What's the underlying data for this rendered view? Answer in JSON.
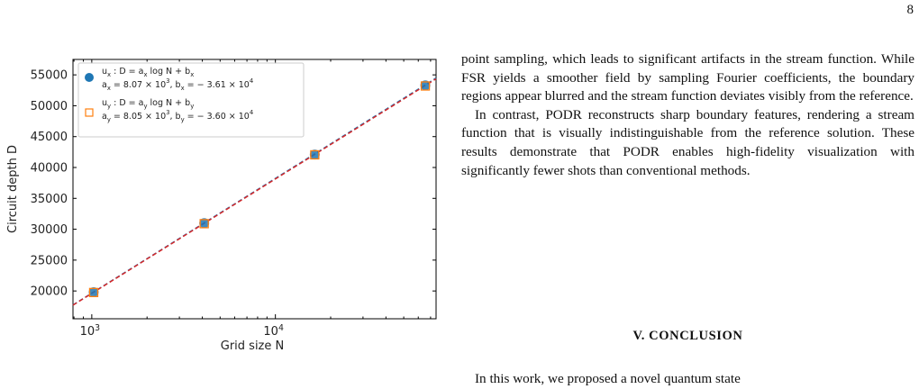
{
  "page": {
    "number": "8"
  },
  "figure": {
    "ylabel": "Circuit depth D",
    "xlabel": "Grid size N",
    "legend": [
      {
        "line1": "u_x : D = a_x log N + b_x",
        "line2": "a_x = 8.07 × 10^3,  b_x = − 3.61 × 10^4",
        "marker": "filled-circle",
        "color": "#1f77b4"
      },
      {
        "line1": "u_y : D = a_y log N + b_y",
        "line2": "a_y = 8.05 × 10^3,  b_y = − 3.60 × 10^4",
        "marker": "open-square",
        "color": "#ff7f0e"
      }
    ],
    "yticks": [
      "20000",
      "25000",
      "30000",
      "35000",
      "40000",
      "45000",
      "50000",
      "55000"
    ],
    "xticks": [
      "10^3",
      "10^4"
    ]
  },
  "chart_data": {
    "type": "scatter",
    "xscale": "log",
    "xlabel": "Grid size N",
    "ylabel": "Circuit depth D",
    "xlim": [
      790,
      75000
    ],
    "ylim": [
      15500,
      57500
    ],
    "series": [
      {
        "name": "u_x",
        "marker": "circle",
        "color": "#1f77b4",
        "x": [
          1024,
          4096,
          16384,
          65536
        ],
        "y": [
          19800,
          31000,
          42100,
          53300
        ],
        "fit": {
          "a": 8070,
          "b": -36100
        }
      },
      {
        "name": "u_y",
        "marker": "square",
        "color": "#ff7f0e",
        "x": [
          1024,
          4096,
          16384,
          65536
        ],
        "y": [
          19750,
          30900,
          42050,
          53200
        ],
        "fit": {
          "a": 8050,
          "b": -36000
        }
      }
    ]
  },
  "text": {
    "para1": "point sampling, which leads to significant artifacts in the stream function. While FSR yields a smoother field by sampling Fourier coefficients, the boundary regions appear blurred and the stream function deviates visibly from the reference.",
    "para2": "In contrast, PODR reconstructs sharp boundary features, rendering a stream function that is visually indistinguishable from the reference solution. These results demonstrate that PODR enables high-fidelity visualization with significantly fewer shots than conventional methods.",
    "section_heading": "V.   CONCLUSION",
    "conclusion_start": "In this work, we proposed a novel quantum state"
  }
}
